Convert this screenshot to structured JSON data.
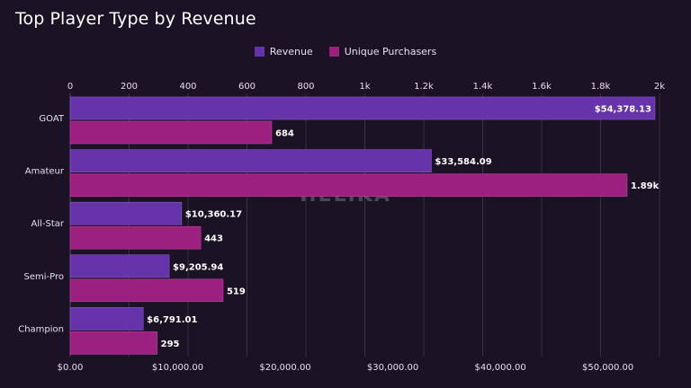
{
  "colors": {
    "background": "#1b1226",
    "revenue": "#6633aa",
    "purchasers": "#9b2080",
    "grid": "#3a2f47"
  },
  "watermark": "HELIKA",
  "chart_data": {
    "type": "bar",
    "orientation": "horizontal",
    "title": "Top Player Type by Revenue",
    "categories": [
      "GOAT",
      "Amateur",
      "All-Star",
      "Semi-Pro",
      "Champion"
    ],
    "series": [
      {
        "name": "Revenue",
        "axis": "bottom",
        "values": [
          54378.13,
          33584.09,
          10360.17,
          9205.94,
          6791.01
        ],
        "labels": [
          "$54,378.13",
          "$33,584.09",
          "$10,360.17",
          "$9,205.94",
          "$6,791.01"
        ]
      },
      {
        "name": "Unique Purchasers",
        "axis": "top",
        "values": [
          684,
          1890,
          443,
          519,
          295
        ],
        "labels": [
          "684",
          "1.89k",
          "443",
          "519",
          "295"
        ]
      }
    ],
    "top_axis": {
      "range": [
        0,
        2000
      ],
      "ticks": [
        0,
        200,
        400,
        600,
        800,
        1000,
        1200,
        1400,
        1600,
        1800,
        2000
      ],
      "tick_labels": [
        "0",
        "200",
        "400",
        "600",
        "800",
        "1k",
        "1.2k",
        "1.4k",
        "1.6k",
        "1.8k",
        "2k"
      ]
    },
    "bottom_axis": {
      "range": [
        0,
        54800
      ],
      "ticks": [
        0,
        10000,
        20000,
        30000,
        40000,
        50000
      ],
      "tick_labels": [
        "$0.00",
        "$10,000.00",
        "$20,000.00",
        "$30,000.00",
        "$40,000.00",
        "$50,000.00"
      ]
    },
    "legend": "top-center",
    "grid": true
  }
}
